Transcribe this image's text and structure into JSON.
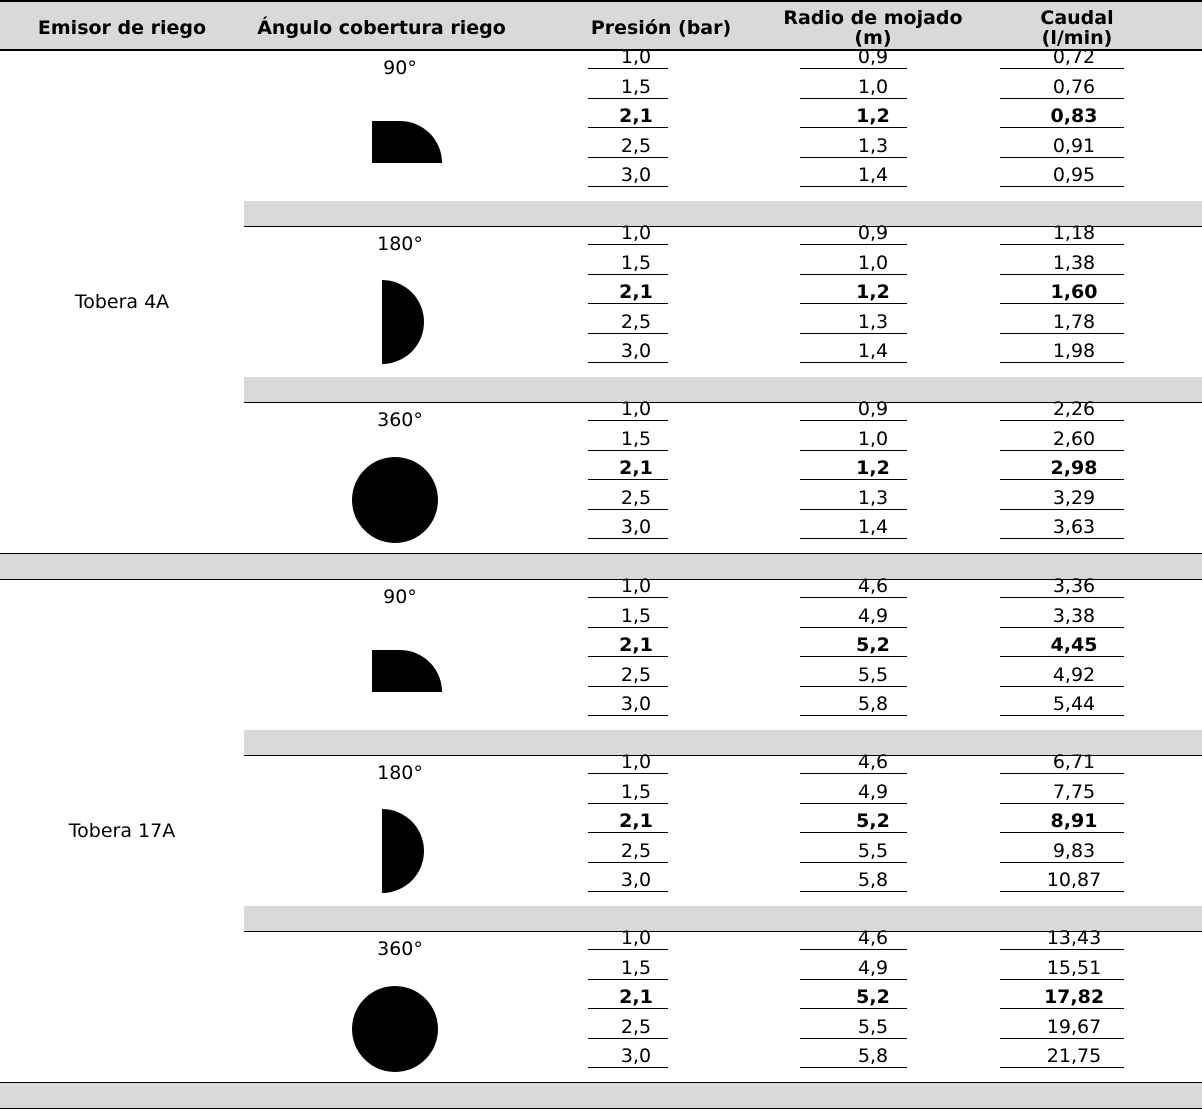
{
  "header": {
    "col1": "Emisor de riego",
    "col2": "Ángulo cobertura riego",
    "col3": "Presión (bar)",
    "col4": "Radio de mojado (m)",
    "col5": "Caudal (l/min)"
  },
  "groups": [
    {
      "emisor": "Tobera 4A",
      "angles": [
        {
          "angle": "90°",
          "shape": "quarter",
          "rows": [
            [
              "1,0",
              "0,9",
              "0,72"
            ],
            [
              "1,5",
              "1,0",
              "0,76"
            ],
            [
              "2,1",
              "1,2",
              "0,83"
            ],
            [
              "2,5",
              "1,3",
              "0,91"
            ],
            [
              "3,0",
              "1,4",
              "0,95"
            ]
          ]
        },
        {
          "angle": "180°",
          "shape": "half",
          "rows": [
            [
              "1,0",
              "0,9",
              "1,18"
            ],
            [
              "1,5",
              "1,0",
              "1,38"
            ],
            [
              "2,1",
              "1,2",
              "1,60"
            ],
            [
              "2,5",
              "1,3",
              "1,78"
            ],
            [
              "3,0",
              "1,4",
              "1,98"
            ]
          ]
        },
        {
          "angle": "360°",
          "shape": "full",
          "rows": [
            [
              "1,0",
              "0,9",
              "2,26"
            ],
            [
              "1,5",
              "1,0",
              "2,60"
            ],
            [
              "2,1",
              "1,2",
              "2,98"
            ],
            [
              "2,5",
              "1,3",
              "3,29"
            ],
            [
              "3,0",
              "1,4",
              "3,63"
            ]
          ]
        }
      ]
    },
    {
      "emisor": "Tobera 17A",
      "angles": [
        {
          "angle": "90°",
          "shape": "quarter",
          "rows": [
            [
              "1,0",
              "4,6",
              "3,36"
            ],
            [
              "1,5",
              "4,9",
              "3,38"
            ],
            [
              "2,1",
              "5,2",
              "4,45"
            ],
            [
              "2,5",
              "5,5",
              "4,92"
            ],
            [
              "3,0",
              "5,8",
              "5,44"
            ]
          ]
        },
        {
          "angle": "180°",
          "shape": "half",
          "rows": [
            [
              "1,0",
              "4,6",
              "6,71"
            ],
            [
              "1,5",
              "4,9",
              "7,75"
            ],
            [
              "2,1",
              "5,2",
              "8,91"
            ],
            [
              "2,5",
              "5,5",
              "9,83"
            ],
            [
              "3,0",
              "5,8",
              "10,87"
            ]
          ]
        },
        {
          "angle": "360°",
          "shape": "full",
          "rows": [
            [
              "1,0",
              "4,6",
              "13,43"
            ],
            [
              "1,5",
              "4,9",
              "15,51"
            ],
            [
              "2,1",
              "5,2",
              "17,82"
            ],
            [
              "2,5",
              "5,5",
              "19,67"
            ],
            [
              "3,0",
              "5,8",
              "21,75"
            ]
          ]
        }
      ]
    }
  ],
  "highlight_row_index": 2
}
